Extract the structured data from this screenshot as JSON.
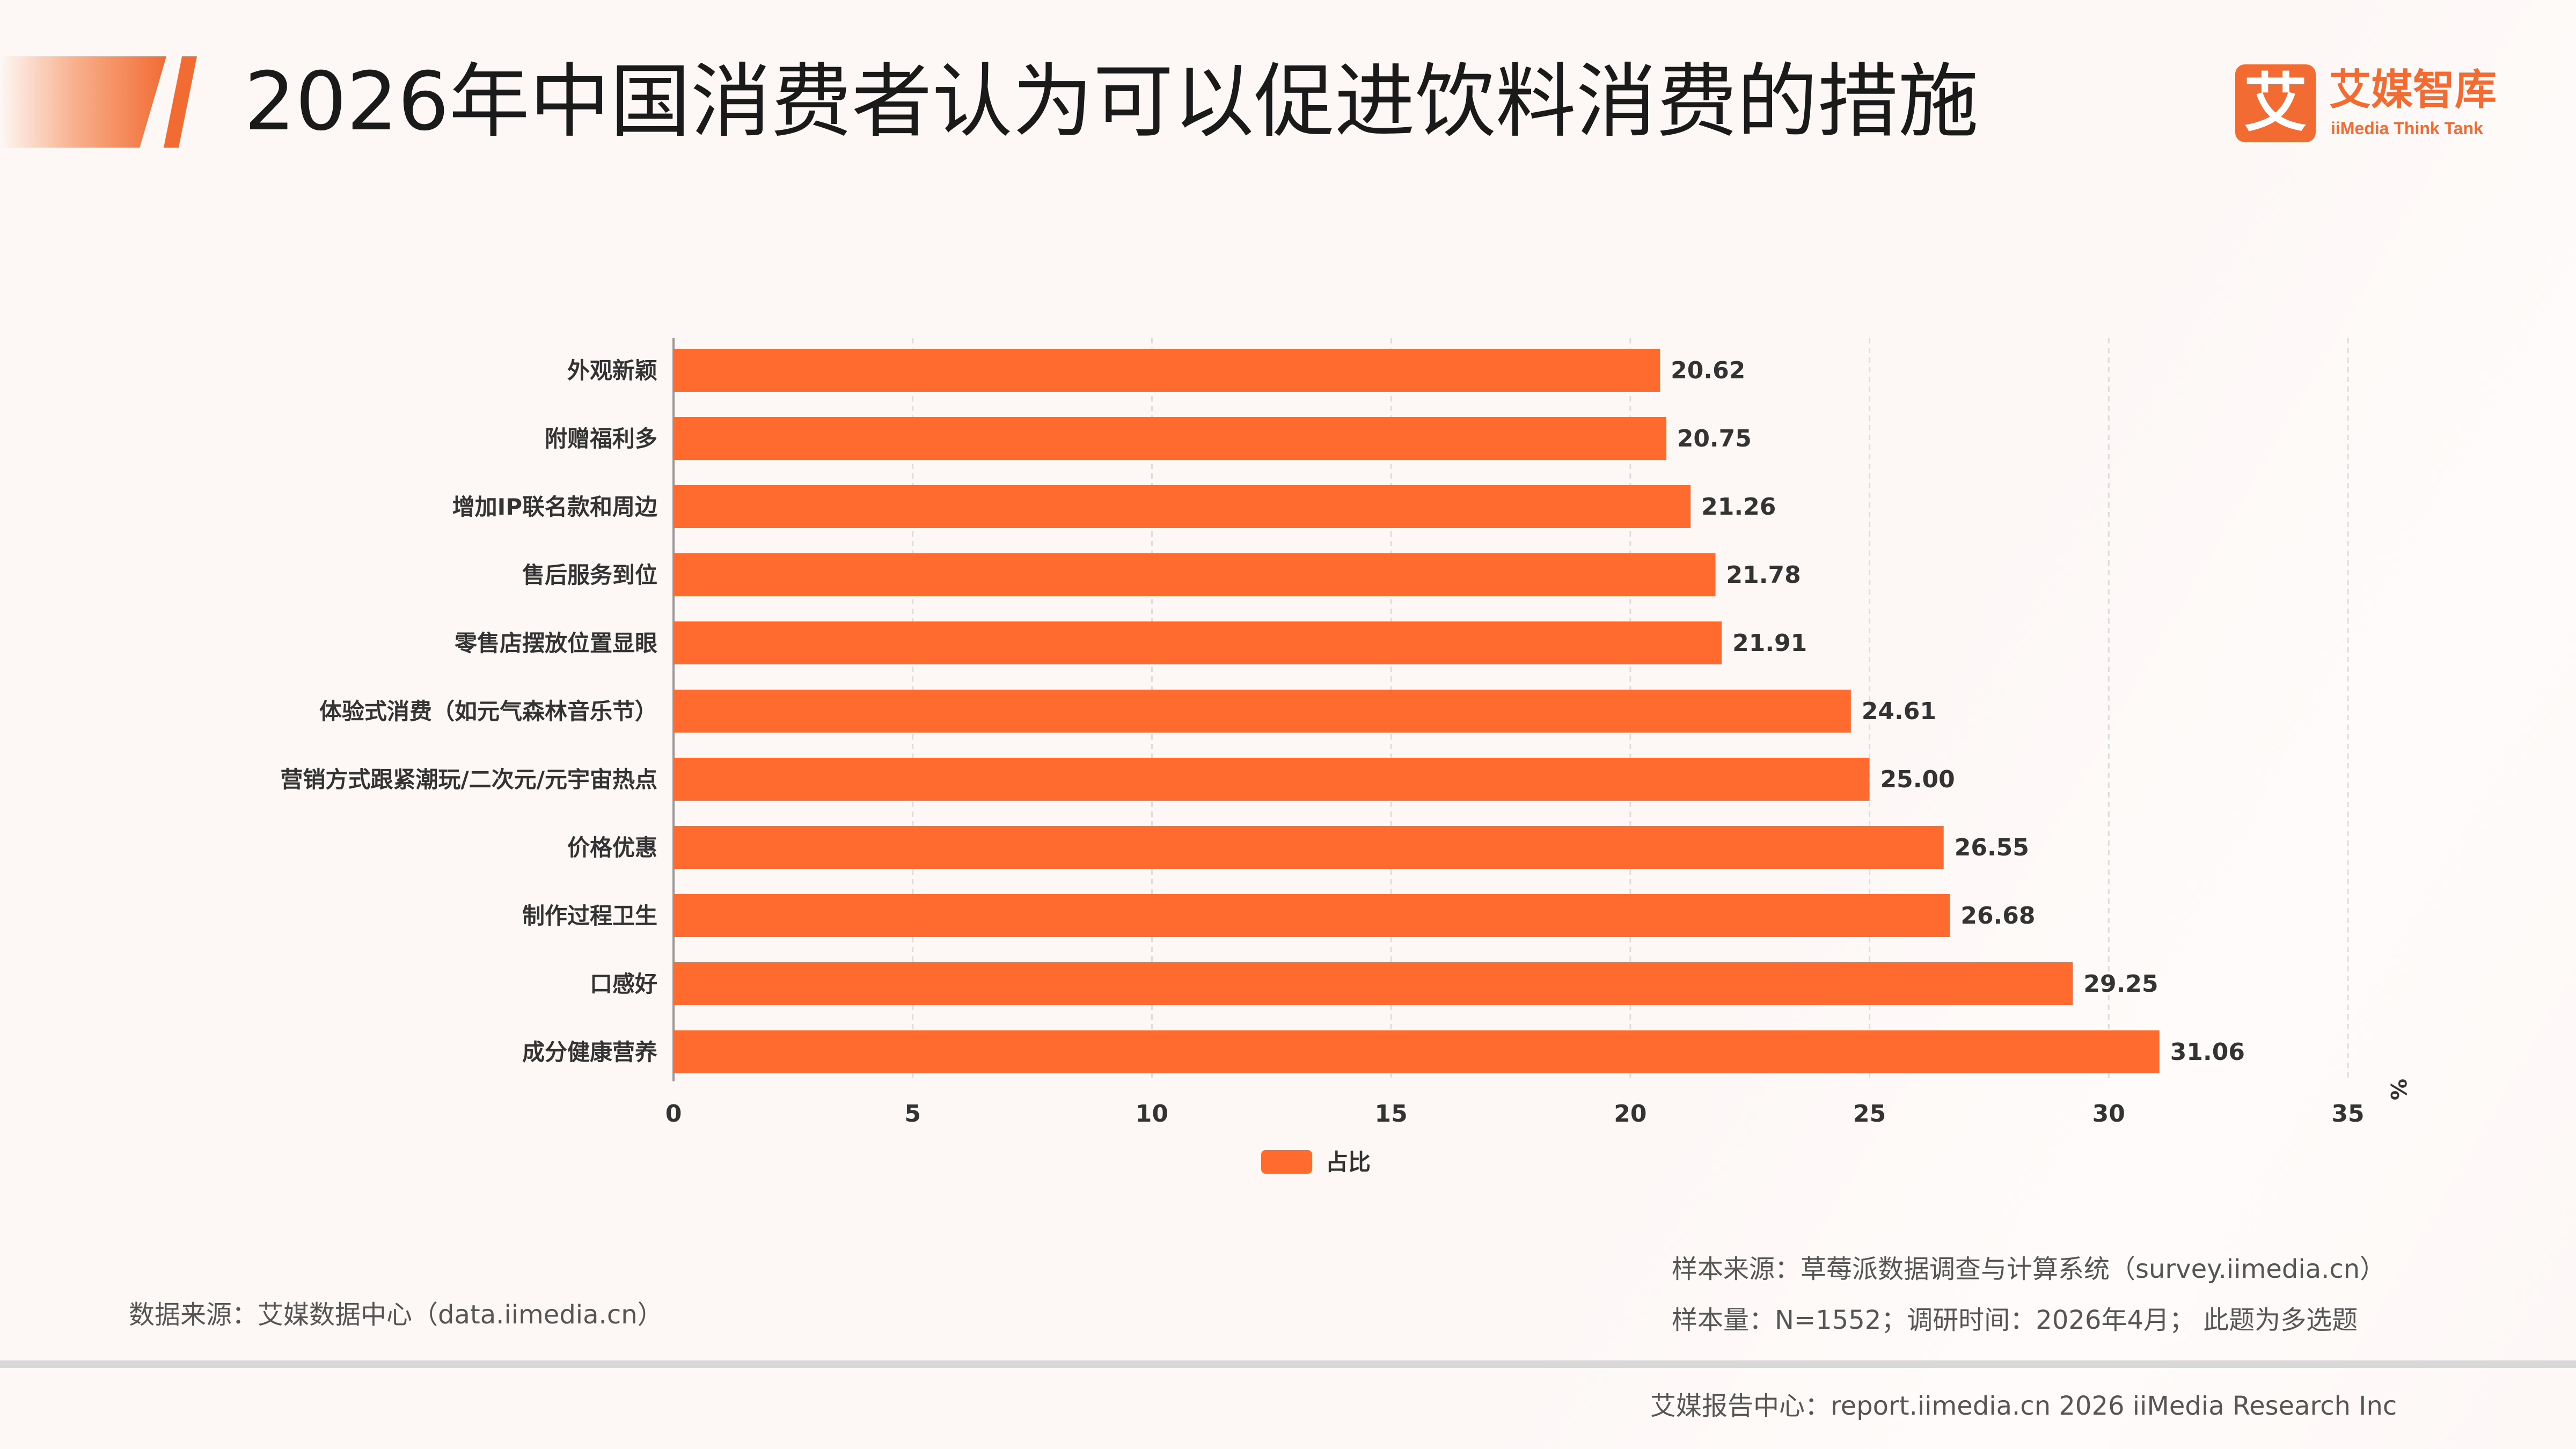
{
  "title": "2026年中国消费者认为可以促进饮料消费的措施",
  "logo": {
    "cn": "艾媒智库",
    "en": "iiMedia Think Tank"
  },
  "colors": {
    "accent": "#f26b33",
    "bar": "#ff6b2f",
    "text": "#1a1a1a",
    "grid": "#dddddd"
  },
  "chart_data": {
    "type": "bar",
    "orientation": "horizontal",
    "title": "",
    "xlabel": "",
    "ylabel": "",
    "unit": "%",
    "categories": [
      "外观新颖",
      "附赠福利多",
      "增加IP联名款和周边",
      "售后服务到位",
      "零售店摆放位置显眼",
      "体验式消费（如元气森林音乐节）",
      "营销方式跟紧潮玩/二次元/元宇宙热点",
      "价格优惠",
      "制作过程卫生",
      "口感好",
      "成分健康营养"
    ],
    "series": [
      {
        "name": "占比",
        "values": [
          20.62,
          20.75,
          21.26,
          21.78,
          21.91,
          24.61,
          25.0,
          26.55,
          26.68,
          29.25,
          31.06
        ],
        "labels": [
          "20.62",
          "20.75",
          "21.26",
          "21.78",
          "21.91",
          "24.61",
          "25.00",
          "26.55",
          "26.68",
          "29.25",
          "31.06"
        ]
      }
    ],
    "xlim": [
      0,
      35
    ],
    "xticks": [
      0,
      5,
      10,
      15,
      20,
      25,
      30,
      35
    ],
    "grid": true,
    "legend_position": "bottom"
  },
  "footer": {
    "source_left": "数据来源：艾媒数据中心（data.iimedia.cn）",
    "sample_source": "样本来源：草莓派数据调查与计算系统（survey.iimedia.cn）",
    "sample_size": "样本量：N=1552；调研时间：2026年4月；  此题为多选题",
    "report": "艾媒报告中心：report.iimedia.cn   2026 iiMedia Research Inc"
  }
}
